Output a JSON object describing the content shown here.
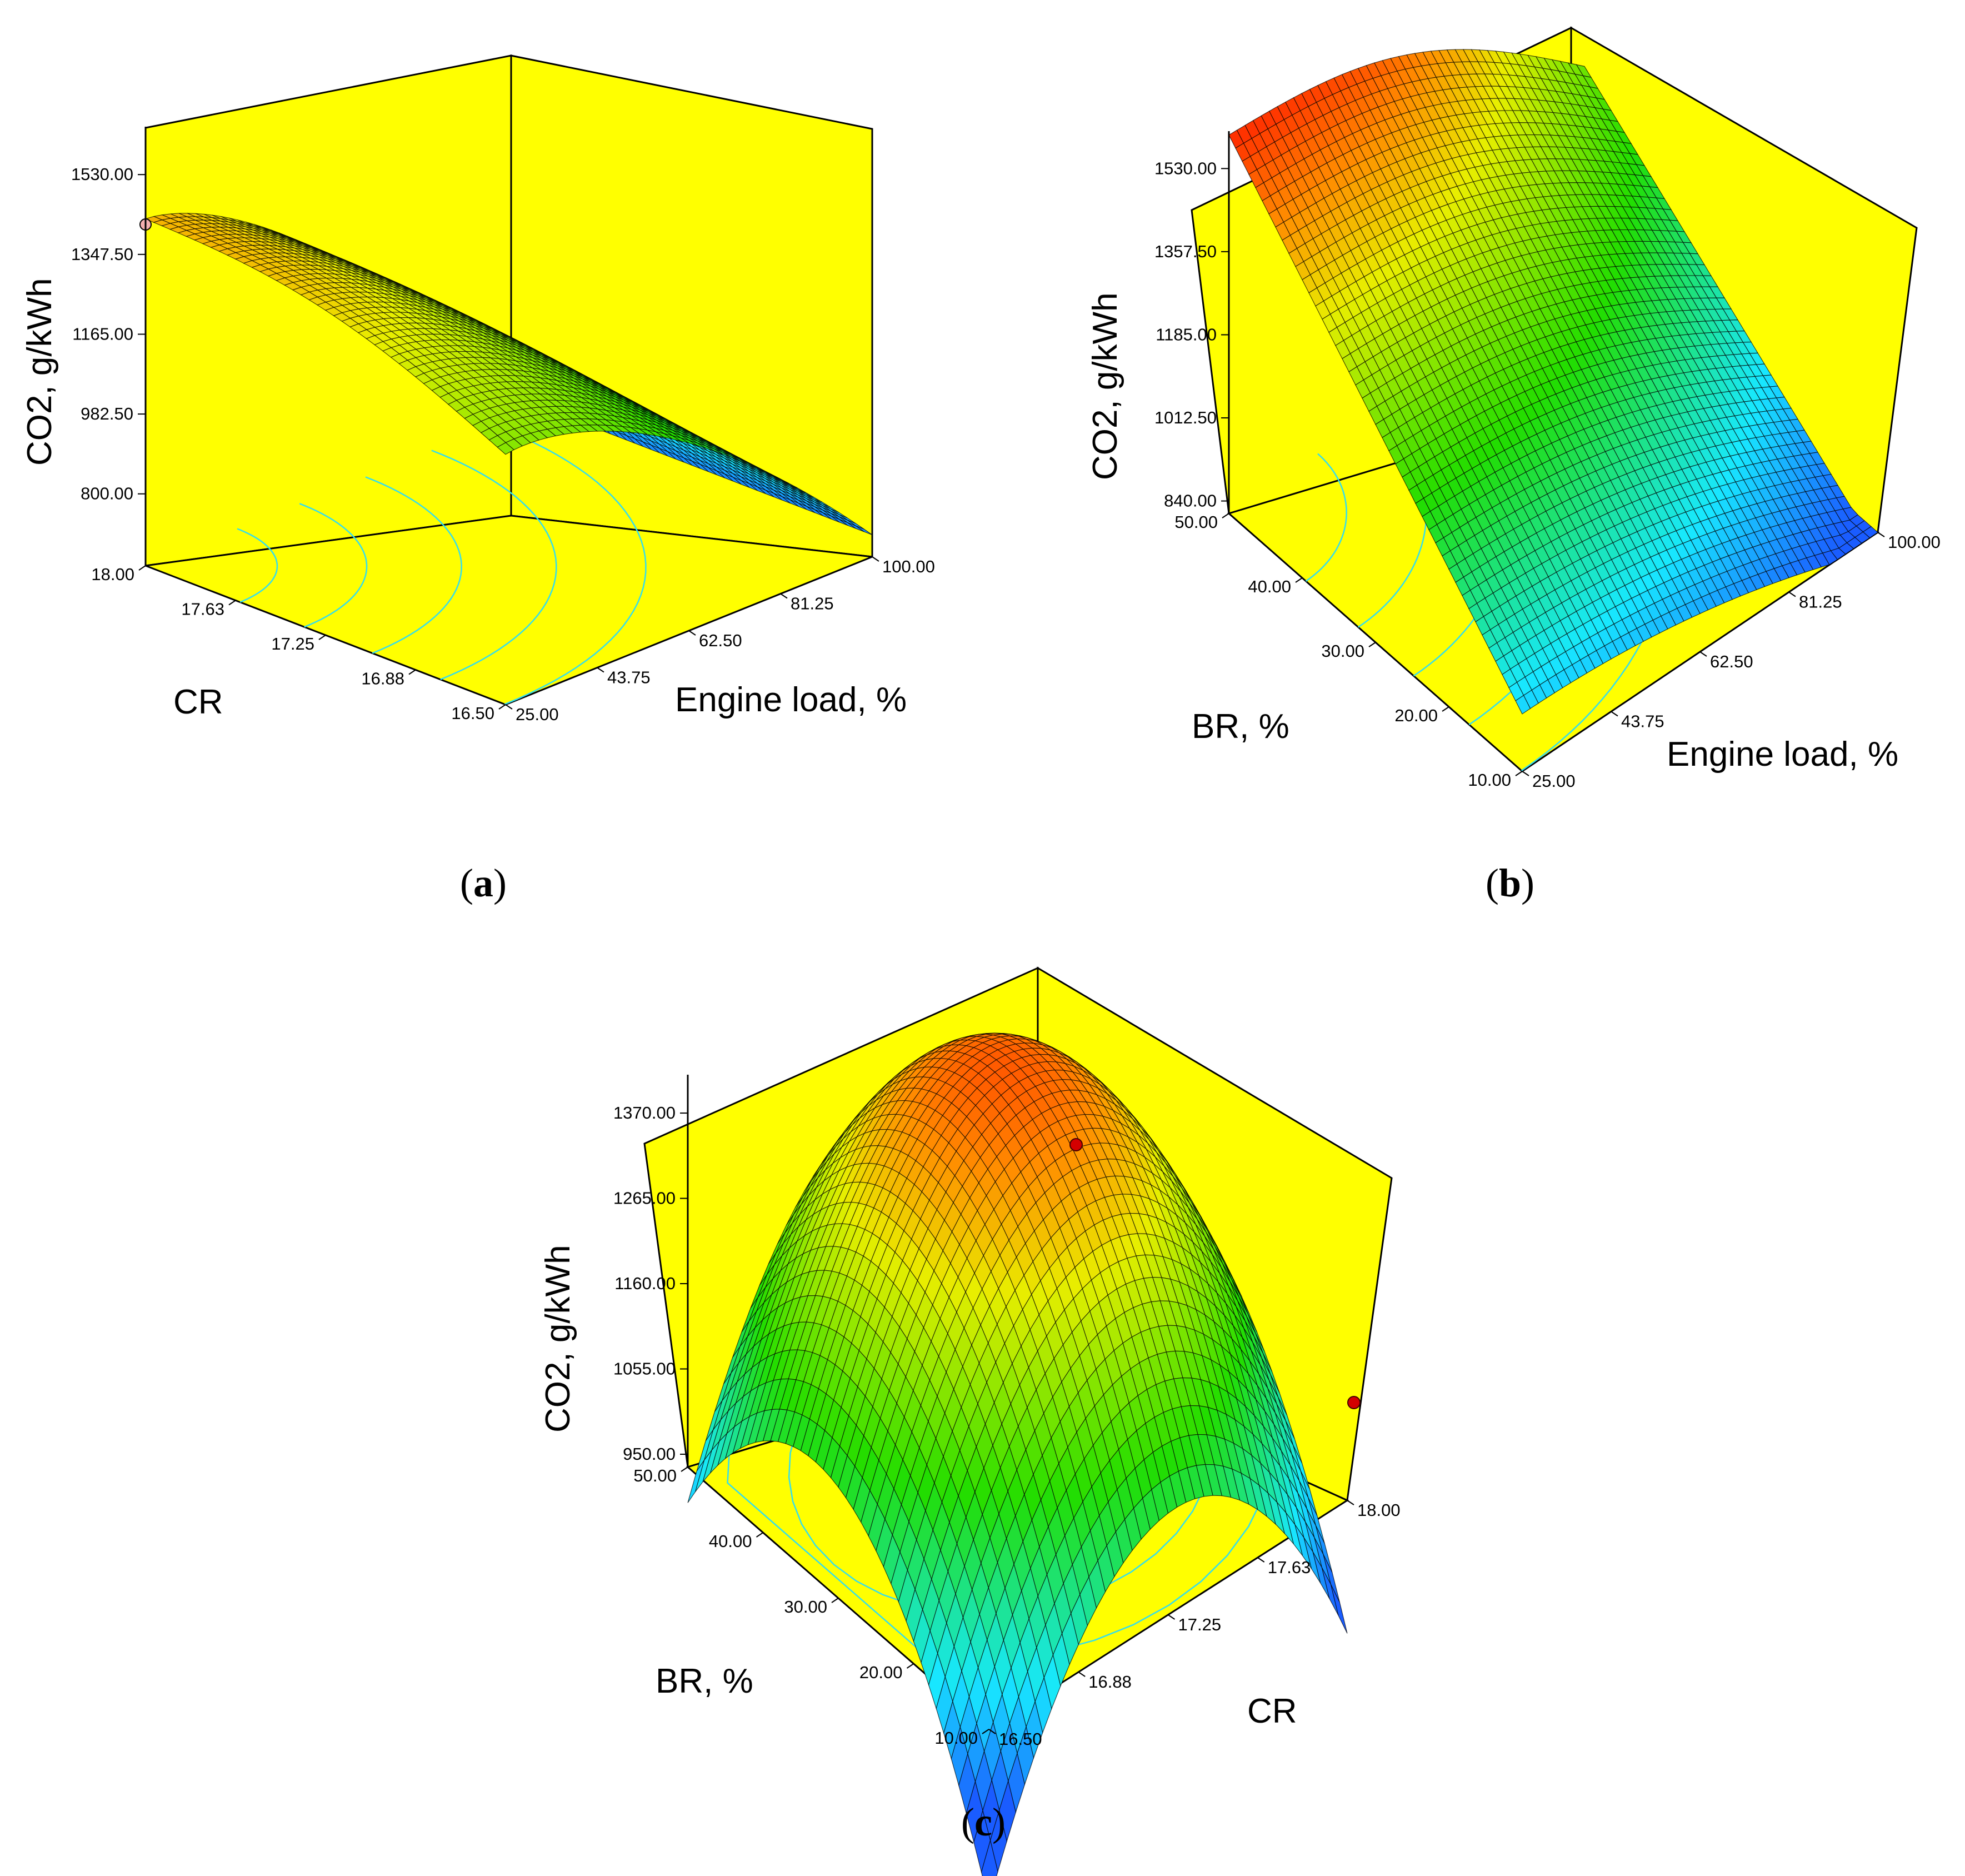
{
  "colors": {
    "background": "#ffff00",
    "axis_line": "#000000",
    "contour": "#33ddee",
    "surface_low": "#1a5cff",
    "surface_mid": "#22dd00",
    "surface_high": "#ff2200",
    "marker": "#d40000"
  },
  "chart_data": [
    {
      "type": "surface3d",
      "panel_label": "a",
      "zlabel": "CO2, g/kWh",
      "xlabel": "Engine load, %",
      "ylabel": "CR",
      "x_ticks": [
        "25.00",
        "43.75",
        "62.50",
        "81.25",
        "100.00"
      ],
      "y_ticks": [
        "18.00",
        "17.63",
        "17.25",
        "16.88",
        "16.50"
      ],
      "z_ticks": [
        "800.00",
        "982.50",
        "1165.00",
        "1347.50",
        "1530.00"
      ],
      "xlim": [
        25,
        100
      ],
      "ylim": [
        16.5,
        18
      ],
      "zlim": [
        800,
        1530
      ],
      "surface_corners": {
        "load_25_cr_18": 1347.5,
        "load_25_cr_16.5": 1180,
        "load_100_cr_18": 870,
        "load_100_cr_16.5": 800
      },
      "design_point": {
        "x": 25,
        "y": 18,
        "z": 1347.5
      },
      "contours_on_floor": true
    },
    {
      "type": "surface3d",
      "panel_label": "b",
      "zlabel": "CO2, g/kWh",
      "xlabel": "Engine load, %",
      "ylabel": "BR, %",
      "x_ticks": [
        "25.00",
        "43.75",
        "62.50",
        "81.25",
        "100.00"
      ],
      "y_ticks": [
        "10.00",
        "20.00",
        "30.00",
        "40.00",
        "50.00"
      ],
      "z_ticks": [
        "840.00",
        "1012.50",
        "1185.00",
        "1357.50",
        "1530.00"
      ],
      "xlim": [
        25,
        100
      ],
      "ylim": [
        10,
        50
      ],
      "zlim": [
        840,
        1530
      ],
      "surface_corners": {
        "load_25_br_50": 1530,
        "load_25_br_10": 900,
        "load_100_br_50": 1020,
        "load_100_br_10": 840
      },
      "contours_on_floor": true
    },
    {
      "type": "surface3d",
      "panel_label": "c",
      "zlabel": "CO2, g/kWh",
      "xlabel": "CR",
      "ylabel": "BR, %",
      "x_ticks": [
        "16.50",
        "16.88",
        "17.25",
        "17.63",
        "18.00"
      ],
      "y_ticks": [
        "10.00",
        "20.00",
        "30.00",
        "40.00",
        "50.00"
      ],
      "z_ticks": [
        "950.00",
        "1055.00",
        "1160.00",
        "1265.00",
        "1370.00"
      ],
      "xlim": [
        16.5,
        18
      ],
      "ylim": [
        10,
        50
      ],
      "zlim": [
        950,
        1370
      ],
      "surface_peak": {
        "x": 17.25,
        "y": 30,
        "z": 1370
      },
      "surface_corners": {
        "cr_16.5_br_50": 1055,
        "cr_18_br_10": 1010,
        "cr_16.5_br_10": 760,
        "cr_18_br_50": 1200
      },
      "design_points": [
        {
          "x": 17.4,
          "y": 38,
          "z": 1330
        },
        {
          "x": 18,
          "y": 10,
          "z": 1010
        }
      ],
      "contours_on_floor": true
    }
  ]
}
